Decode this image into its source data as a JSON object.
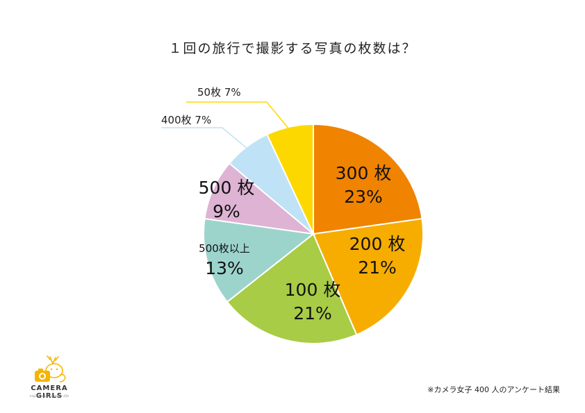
{
  "chart_data": {
    "type": "pie",
    "title": "１回の旅行で撮影する写真の枚数は？",
    "slices": [
      {
        "name": "300 枚",
        "value": 23,
        "label": "23%",
        "color": "#F08300"
      },
      {
        "name": "200 枚",
        "value": 21,
        "label": "21%",
        "color": "#F6AD00"
      },
      {
        "name": "100 枚",
        "value": 21,
        "label": "21%",
        "color": "#A8CC45"
      },
      {
        "name": "500枚以上",
        "value": 13,
        "label": "13%",
        "color": "#9CD4CC"
      },
      {
        "name": "500 枚",
        "value": 9,
        "label": "9%",
        "color": "#DEB3D4"
      },
      {
        "name": "400枚",
        "value": 7,
        "label": "7%",
        "color": "#C0E2F6",
        "callout": "400枚 7%"
      },
      {
        "name": "50枚",
        "value": 7,
        "label": "7%",
        "color": "#FCD800",
        "callout": "50枚 7%"
      }
    ],
    "start": "12 o'clock",
    "direction": "clockwise"
  },
  "footnote": "※カメラ女子 400 人のアンケート結果",
  "logo": {
    "name": "CAMERA GIRLS",
    "tagline": "enjoy your camera life",
    "color": "#F5B400",
    "icon": "camera-deer-logo-icon"
  }
}
